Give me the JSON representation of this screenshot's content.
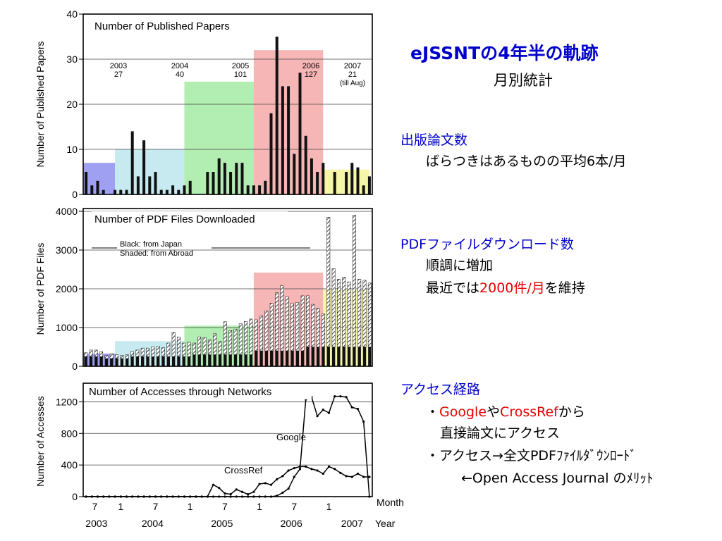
{
  "panel": {
    "title": "eJSSNTの4年半の軌跡",
    "subtitle": "月別統計",
    "sections": [
      {
        "heading": "出版論文数",
        "line1": "ばらつきはあるものの平均6本/月"
      },
      {
        "heading": "PDFファイルダウンロード数",
        "line1": "順調に増加",
        "line2_pre": "最近では",
        "line2_red": "2000件/月",
        "line2_post": "を維持"
      },
      {
        "heading": "アクセス経路",
        "line1_pre": "・",
        "line1_red1": "Google",
        "line1_mid": "や",
        "line1_red2": "CrossRef",
        "line1_post": "から",
        "line2": "直接論文にアクセス",
        "line3": "・アクセス→全文PDFﾌｧｲﾙﾀﾞｳﾝﾛｰﾄﾞ",
        "line4": "←Open Access Journal のﾒﾘｯﾄ"
      }
    ]
  },
  "colors": {
    "y2003": "#8f8ff0",
    "y2004": "#bde6ee",
    "y2005": "#a5eaa5",
    "y2006": "#f6a9a9",
    "y2007": "#f5f59a",
    "ink": "#111111",
    "text_blue": "#0000cc",
    "text_red": "#e60000"
  },
  "chart_data": [
    {
      "type": "bar",
      "title": "Number of Published Papers",
      "ylabel": "Number of Published Papers",
      "ylim": [
        0,
        40
      ],
      "yticks": [
        0,
        10,
        20,
        30,
        40
      ],
      "grid": true,
      "values": [
        5,
        2,
        3,
        1,
        0,
        1,
        1,
        1,
        14,
        4,
        12,
        4,
        5,
        1,
        1,
        2,
        1,
        2,
        3,
        0,
        0,
        5,
        5,
        8,
        7,
        5,
        7,
        7,
        2,
        2,
        2,
        3,
        18,
        35,
        24,
        24,
        9,
        27,
        13,
        8,
        5,
        7,
        0,
        5,
        0,
        5,
        7,
        6,
        2,
        4,
        0
      ],
      "year_totals": [
        {
          "year": "2003",
          "count": "27",
          "note": ""
        },
        {
          "year": "2004",
          "count": "40",
          "note": ""
        },
        {
          "year": "2005",
          "count": "101",
          "note": ""
        },
        {
          "year": "2006",
          "count": "127",
          "note": ""
        },
        {
          "year": "2007",
          "count": "21",
          "note": "(till Aug)"
        }
      ],
      "year_blocks": [
        {
          "year": "2003",
          "from": 0,
          "to": 5.5,
          "avg": 7
        },
        {
          "year": "2004",
          "from": 5.5,
          "to": 17.5,
          "avg": 10
        },
        {
          "year": "2005",
          "from": 17.5,
          "to": 29.5,
          "avg": 25
        },
        {
          "year": "2006",
          "from": 29.5,
          "to": 41.5,
          "avg": 32
        },
        {
          "year": "2007",
          "from": 41.5,
          "to": 49.5,
          "avg": 5.5
        }
      ]
    },
    {
      "type": "bar",
      "title": "Number of PDF Files Downloaded",
      "ylabel": "Number of PDF Files",
      "ylim": [
        0,
        4000
      ],
      "yticks": [
        0,
        1000,
        2000,
        3000,
        4000
      ],
      "grid": true,
      "legend": {
        "black": "Black:   from Japan",
        "shaded": "Shaded: from Abroad"
      },
      "series": [
        {
          "name": "from Japan",
          "values": [
            250,
            250,
            250,
            250,
            200,
            200,
            200,
            200,
            200,
            250,
            250,
            250,
            250,
            250,
            250,
            250,
            250,
            250,
            250,
            250,
            250,
            300,
            300,
            300,
            300,
            300,
            300,
            300,
            300,
            300,
            300,
            300,
            300,
            400,
            400,
            400,
            400,
            400,
            400,
            400,
            400,
            400,
            400,
            500,
            500,
            500,
            500,
            500,
            500,
            500,
            500,
            500,
            500,
            500,
            500,
            500
          ]
        },
        {
          "name": "from Abroad",
          "values": [
            350,
            420,
            420,
            380,
            280,
            320,
            300,
            280,
            300,
            380,
            420,
            470,
            470,
            500,
            520,
            480,
            600,
            880,
            760,
            600,
            620,
            600,
            760,
            740,
            680,
            840,
            640,
            1150,
            920,
            960,
            1100,
            1160,
            1220,
            1200,
            1300,
            1430,
            1630,
            1900,
            2080,
            1800,
            1620,
            1650,
            1820,
            1820,
            1600,
            1500,
            1350,
            3850,
            2520,
            2250,
            2300,
            2180,
            3900,
            2250,
            2220,
            2150
          ]
        }
      ],
      "year_blocks": [
        {
          "year": "2003",
          "from": 0,
          "to": 5.5,
          "avg": 330
        },
        {
          "year": "2004",
          "from": 5.5,
          "to": 17.5,
          "avg": 650
        },
        {
          "year": "2005",
          "from": 17.5,
          "to": 29.5,
          "avg": 1050
        },
        {
          "year": "2006",
          "from": 29.5,
          "to": 41.5,
          "avg": 2420
        },
        {
          "year": "2007",
          "from": 41.5,
          "to": 49.5,
          "avg": 1980
        }
      ]
    },
    {
      "type": "line",
      "title": "Number of Accesses through Networks",
      "ylabel": "Number of Accesses",
      "xlabel": "Month",
      "x_year_label": "Year",
      "ylim": [
        0,
        1400
      ],
      "yticks": [
        0,
        400,
        800,
        1200
      ],
      "x_month_ticks": [
        "7",
        "1",
        "7",
        "1",
        "7",
        "1",
        "7",
        "1"
      ],
      "x_month_positions": [
        1.5,
        6,
        12,
        18,
        24,
        30,
        36,
        42
      ],
      "x_year_ticks": [
        "2003",
        "2004",
        "2005",
        "2006",
        "2007"
      ],
      "x_year_positions": [
        1.8,
        11.5,
        23.5,
        35.5,
        46
      ],
      "series": [
        {
          "name": "Google",
          "values": [
            0,
            0,
            0,
            0,
            0,
            0,
            0,
            0,
            0,
            0,
            0,
            0,
            0,
            0,
            0,
            0,
            0,
            0,
            0,
            0,
            0,
            0,
            0,
            0,
            0,
            0,
            0,
            0,
            0,
            0,
            0,
            0,
            0,
            10,
            50,
            100,
            250,
            350,
            1230,
            1260,
            1020,
            1100,
            1060,
            1270,
            1270,
            1260,
            1130,
            1110,
            950,
            0
          ]
        },
        {
          "name": "CrossRef",
          "values": [
            0,
            0,
            0,
            0,
            0,
            0,
            0,
            0,
            0,
            0,
            0,
            0,
            0,
            0,
            0,
            0,
            0,
            0,
            0,
            0,
            0,
            0,
            150,
            110,
            40,
            30,
            90,
            60,
            30,
            60,
            160,
            170,
            150,
            220,
            260,
            330,
            360,
            380,
            380,
            350,
            330,
            290,
            380,
            350,
            300,
            260,
            250,
            290,
            250,
            250
          ]
        }
      ]
    }
  ]
}
